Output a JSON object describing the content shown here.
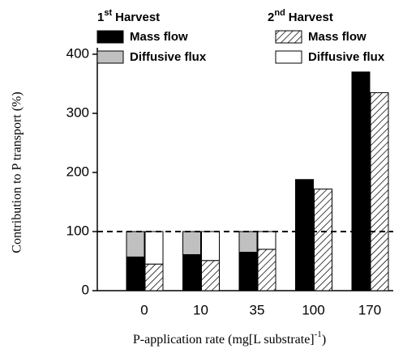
{
  "chart_data": {
    "type": "bar",
    "ylabel": "Contribution to P transport (%)",
    "xlabel_main": "P-application rate (mg[L substrate]",
    "xlabel_sup": "-1",
    "xlabel_end": ")",
    "categories": [
      "0",
      "10",
      "35",
      "100",
      "170"
    ],
    "legend_groups": [
      {
        "number": "1",
        "suffix": "st",
        "word": "Harvest"
      },
      {
        "number": "2",
        "suffix": "nd",
        "word": "Harvest"
      }
    ],
    "series": [
      {
        "name": "Mass flow",
        "color": "#000000",
        "values": [
          57,
          61,
          65,
          188,
          370
        ]
      },
      {
        "name": "Diffusive flux",
        "color": "#c0c0c0",
        "values": [
          43,
          39,
          35,
          null,
          null
        ]
      },
      {
        "name": "Mass flow",
        "color": "#000000",
        "pattern": "hatch",
        "values": [
          45,
          51,
          70,
          172,
          335
        ]
      },
      {
        "name": "Diffusive flux",
        "color": "#ffffff",
        "values": [
          55,
          49,
          30,
          null,
          null
        ]
      }
    ],
    "reference_line": 100,
    "ylim": [
      0,
      400
    ],
    "yticks": [
      0,
      100,
      200,
      300,
      400
    ]
  }
}
